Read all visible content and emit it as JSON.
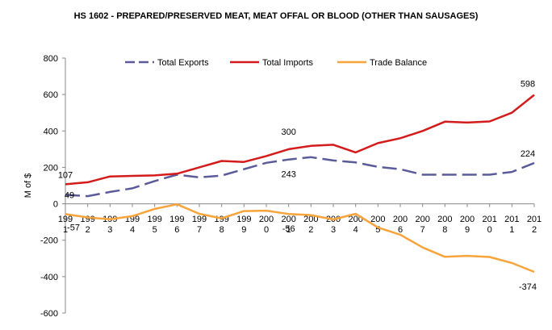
{
  "chart_data": {
    "type": "line",
    "title": "HS 1602 - PREPARED/PRESERVED MEAT, MEAT OFFAL OR BLOOD (OTHER THAN SAUSAGES)",
    "ylabel": "M of $",
    "xlabel": "",
    "ylim": [
      -600,
      800
    ],
    "ytick_step": 200,
    "yticks": [
      "-600",
      "-400",
      "-200",
      "0",
      "200",
      "400",
      "600",
      "800"
    ],
    "categories": [
      [
        "199",
        "1"
      ],
      [
        "199",
        "2"
      ],
      [
        "199",
        "3"
      ],
      [
        "199",
        "4"
      ],
      [
        "199",
        "5"
      ],
      [
        "199",
        "6"
      ],
      [
        "199",
        "7"
      ],
      [
        "199",
        "8"
      ],
      [
        "199",
        "9"
      ],
      [
        "200",
        "0"
      ],
      [
        "200",
        "1"
      ],
      [
        "200",
        "2"
      ],
      [
        "200",
        "3"
      ],
      [
        "200",
        "4"
      ],
      [
        "200",
        "5"
      ],
      [
        "200",
        "6"
      ],
      [
        "200",
        "7"
      ],
      [
        "200",
        "8"
      ],
      [
        "200",
        "9"
      ],
      [
        "201",
        "0"
      ],
      [
        "201",
        "1"
      ],
      [
        "201",
        "2"
      ]
    ],
    "grid": false,
    "legend_position": "top",
    "series": [
      {
        "name": "Total Exports",
        "color": "#5b5b9a",
        "dashed": true,
        "values": [
          49,
          42,
          65,
          85,
          125,
          160,
          145,
          155,
          190,
          225,
          243,
          256,
          238,
          227,
          203,
          190,
          160,
          160,
          160,
          160,
          175,
          224
        ]
      },
      {
        "name": "Total Imports",
        "color": "#d41b1b",
        "dashed": false,
        "values": [
          107,
          118,
          150,
          153,
          156,
          165,
          200,
          235,
          230,
          262,
          300,
          318,
          324,
          282,
          333,
          360,
          400,
          451,
          446,
          452,
          500,
          598
        ]
      },
      {
        "name": "Trade Balance",
        "color": "#f7a43b",
        "dashed": false,
        "values": [
          -57,
          -75,
          -85,
          -68,
          -28,
          -3,
          -55,
          -80,
          -40,
          -38,
          -56,
          -62,
          -86,
          -55,
          -130,
          -170,
          -240,
          -291,
          -286,
          -292,
          -325,
          -374
        ]
      }
    ],
    "annotations": [
      {
        "series": 1,
        "index": 0,
        "text": "107"
      },
      {
        "series": 0,
        "index": 0,
        "text": "49"
      },
      {
        "series": 2,
        "index": 0,
        "text": "-57"
      },
      {
        "series": 1,
        "index": 10,
        "text": "300"
      },
      {
        "series": 0,
        "index": 10,
        "text": "243"
      },
      {
        "series": 2,
        "index": 10,
        "text": "-56"
      },
      {
        "series": 1,
        "index": 21,
        "text": "598"
      },
      {
        "series": 0,
        "index": 21,
        "text": "224"
      },
      {
        "series": 2,
        "index": 21,
        "text": "-374"
      }
    ]
  }
}
